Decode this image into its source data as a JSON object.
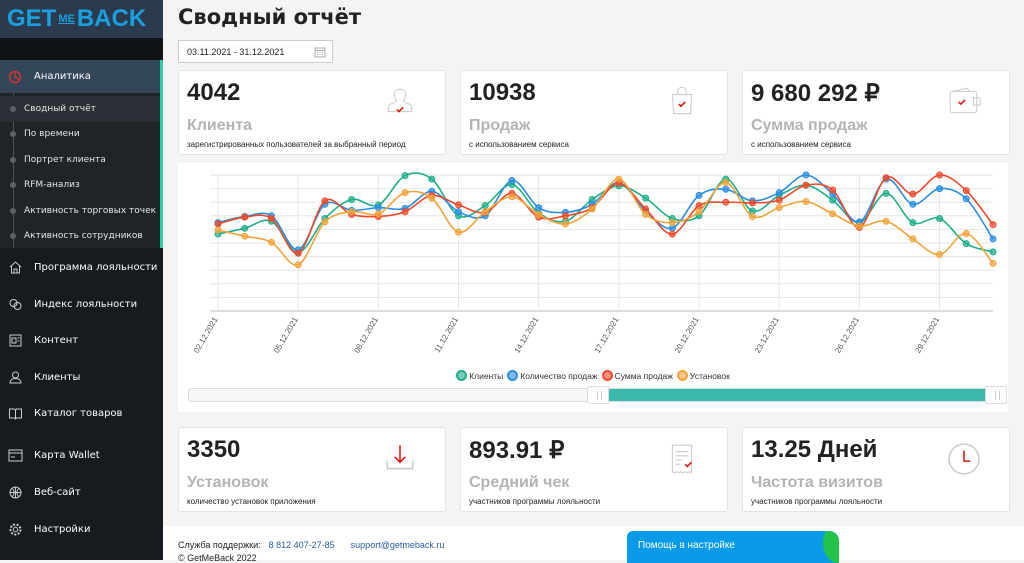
{
  "logo": {
    "text_get": "GET",
    "text_me": "ME",
    "text_back": "BACK"
  },
  "sidebar": {
    "active": {
      "label": "Аналитика",
      "icon": "pie-chart-icon"
    },
    "sub_items": [
      {
        "label": "Сводный отчёт",
        "active": true
      },
      {
        "label": "По времени"
      },
      {
        "label": "Портрет клиента"
      },
      {
        "label": "RFM-анализ"
      },
      {
        "label": "Активность торговых точек"
      },
      {
        "label": "Активность сотрудников"
      }
    ],
    "items": [
      {
        "label": "Программа лояльности",
        "icon": "home-icon"
      },
      {
        "label": "Индекс лояльности",
        "icon": "chat-icon"
      },
      {
        "label": "Контент",
        "icon": "content-icon"
      },
      {
        "label": "Клиенты",
        "icon": "user-icon"
      },
      {
        "label": "Каталог товаров",
        "icon": "book-icon"
      },
      {
        "label": "Карта Wallet",
        "icon": "card-icon"
      },
      {
        "label": "Веб-сайт",
        "icon": "globe-icon"
      },
      {
        "label": "Настройки",
        "icon": "gear-icon"
      }
    ]
  },
  "header": {
    "title": "Сводный отчёт",
    "date_range": "03.11.2021 - 31.12.2021"
  },
  "cards": [
    {
      "value": "4042",
      "label": "Клиента",
      "desc": "зарегистрированных пользователей за выбранный период",
      "icon": "user-check-icon"
    },
    {
      "value": "10938",
      "label": "Продаж",
      "desc": "с использованием сервиса",
      "icon": "shopping-bag-icon"
    },
    {
      "value": "9 680 292 ₽",
      "label": "Сумма продаж",
      "desc": "с использованием сервиса",
      "icon": "wallet-icon"
    },
    {
      "value": "3350",
      "label": "Установок",
      "desc": "количество установок приложения",
      "icon": "download-icon"
    },
    {
      "value": "893.91 ₽",
      "label": "Средний чек",
      "desc": "участников программы лояльности",
      "icon": "receipt-icon"
    },
    {
      "value": "13.25 Дней",
      "label": "Частота визитов",
      "desc": "участников программы лояльности",
      "icon": "clock-icon"
    }
  ],
  "chart_data": {
    "type": "line",
    "x": [
      "02.12.2021",
      "03.12.2021",
      "04.12.2021",
      "05.12.2021",
      "06.12.2021",
      "07.12.2021",
      "08.12.2021",
      "09.12.2021",
      "10.12.2021",
      "11.12.2021",
      "12.12.2021",
      "13.12.2021",
      "14.12.2021",
      "15.12.2021",
      "16.12.2021",
      "17.12.2021",
      "18.12.2021",
      "19.12.2021",
      "20.12.2021",
      "21.12.2021",
      "22.12.2021",
      "23.12.2021",
      "24.12.2021",
      "25.12.2021",
      "26.12.2021",
      "27.12.2021",
      "28.12.2021",
      "29.12.2021",
      "30.12.2021",
      "31.12.2021"
    ],
    "x_tick_labels": [
      "02.12.2021",
      "05.12.2021",
      "08.12.2021",
      "11.12.2021",
      "14.12.2021",
      "17.12.2021",
      "20.12.2021",
      "23.12.2021",
      "26.12.2021",
      "29.12.2021"
    ],
    "ylim": [
      0,
      10
    ],
    "grid": true,
    "legend": "bottom",
    "smooth": true,
    "series": [
      {
        "name": "Клиенты",
        "color": "#1fae8a",
        "values": [
          5.66,
          6.08,
          6.6,
          4.3,
          6.8,
          8.2,
          7.8,
          9.95,
          9.7,
          7.0,
          7.75,
          9.3,
          7.2,
          6.6,
          8.2,
          9.2,
          8.3,
          6.8,
          7.0,
          9.7,
          7.35,
          8.5,
          9.25,
          8.15,
          6.5,
          8.65,
          6.5,
          6.8,
          4.95,
          4.35
        ]
      },
      {
        "name": "Количество продаж",
        "color": "#2a8ee0",
        "values": [
          6.5,
          6.95,
          7.0,
          4.5,
          7.85,
          7.4,
          7.6,
          7.55,
          8.8,
          7.3,
          7.0,
          9.6,
          7.6,
          7.25,
          7.85,
          9.45,
          7.35,
          6.1,
          8.5,
          8.95,
          8.1,
          8.7,
          10,
          8.6,
          6.55,
          9.7,
          7.85,
          9.0,
          8.25,
          5.3
        ]
      },
      {
        "name": "Сумма продаж",
        "color": "#f04a2a",
        "values": [
          6.4,
          6.9,
          6.8,
          4.25,
          8.1,
          7.1,
          6.95,
          7.3,
          8.5,
          7.8,
          7.25,
          8.65,
          6.9,
          7.0,
          7.6,
          9.4,
          7.5,
          5.65,
          7.75,
          8.0,
          7.95,
          8.15,
          9.25,
          8.9,
          6.15,
          9.8,
          8.6,
          10,
          8.85,
          6.35
        ]
      },
      {
        "name": "Установок",
        "color": "#f2a43a",
        "values": [
          5.95,
          5.5,
          5.05,
          3.4,
          6.55,
          7.3,
          7.15,
          8.7,
          8.3,
          5.8,
          7.3,
          8.4,
          7.1,
          6.4,
          7.5,
          9.7,
          7.1,
          6.5,
          7.3,
          9.45,
          6.95,
          7.6,
          8.05,
          7.15,
          6.25,
          6.6,
          5.3,
          4.15,
          5.7,
          3.5
        ]
      }
    ],
    "range_slider": {
      "start": 0.49,
      "end": 1.0,
      "color": "#3db8ac"
    }
  },
  "footer": {
    "support_label": "Служба поддержки:",
    "phone": "8 812 407-27-85",
    "email": "support@getmeback.ru",
    "copyright": "© GetMeBack 2022"
  },
  "help_button": "Помощь в настройке"
}
